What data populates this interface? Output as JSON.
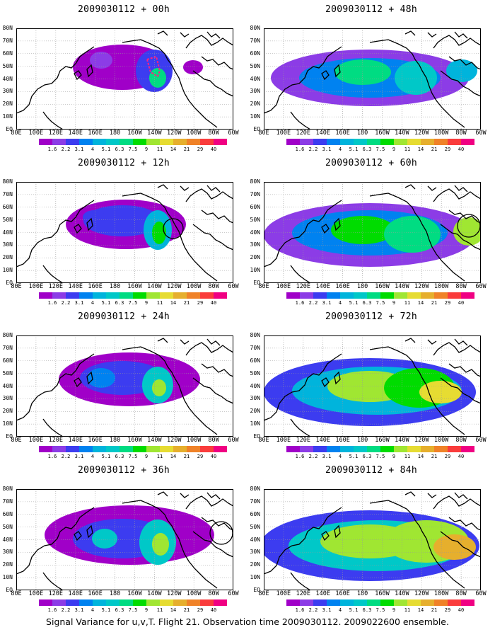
{
  "caption": "Signal Variance for u,v,T. Flight 21. Observation time 2009030112. 2009022600 ensemble.",
  "lat_labels": [
    "80N",
    "70N",
    "60N",
    "50N",
    "40N",
    "30N",
    "20N",
    "10N",
    "EQ"
  ],
  "lon_labels": [
    "80E",
    "100E",
    "120E",
    "140E",
    "160E",
    "180",
    "160W",
    "140W",
    "120W",
    "100W",
    "80W",
    "60W"
  ],
  "colorbar": {
    "colors": [
      "#a000c8",
      "#8c3ce6",
      "#3c3cf0",
      "#0082f0",
      "#00b4dc",
      "#00c8c8",
      "#00dc82",
      "#00dc00",
      "#a0e632",
      "#e6dc32",
      "#e6af2d",
      "#f08228",
      "#fa3c3c",
      "#f00082"
    ],
    "labels": [
      "1.6",
      "2.2",
      "3.1",
      "4",
      "5.1",
      "6.3",
      "7.5",
      "9",
      "11",
      "14",
      "21",
      "29",
      "40"
    ]
  },
  "panels": [
    {
      "title": "2009030112 + 00h",
      "level": 0
    },
    {
      "title": "2009030112 + 48h",
      "level": 4
    },
    {
      "title": "2009030112 + 12h",
      "level": 1
    },
    {
      "title": "2009030112 + 60h",
      "level": 5
    },
    {
      "title": "2009030112 + 24h",
      "level": 2
    },
    {
      "title": "2009030112 + 72h",
      "level": 6
    },
    {
      "title": "2009030112 + 36h",
      "level": 3
    },
    {
      "title": "2009030112 + 84h",
      "level": 7
    }
  ]
}
